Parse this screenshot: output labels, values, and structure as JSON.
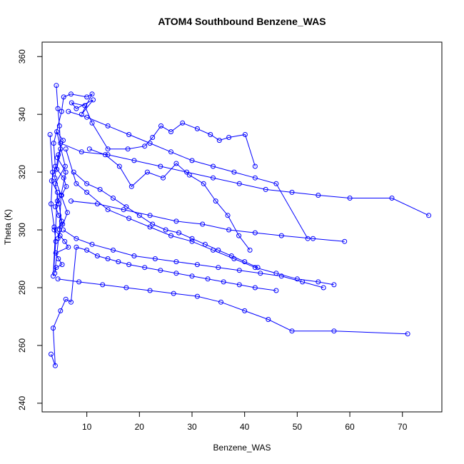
{
  "chart_data": {
    "type": "line",
    "title": "ATOM4 Southbound Benzene_WAS",
    "xlabel": "Benzene_WAS",
    "ylabel": "Theta (K)",
    "xlim": [
      1.5,
      77.5
    ],
    "ylim": [
      237,
      365
    ],
    "x_ticks": [
      10,
      20,
      30,
      40,
      50,
      60,
      70
    ],
    "y_ticks": [
      240,
      260,
      280,
      300,
      320,
      340,
      360
    ],
    "marker": "open-circle",
    "series_color": "#0000ff",
    "series": [
      {
        "x": [
          4.2,
          4.5,
          4.8,
          5.0,
          4.3,
          5.6,
          6.1,
          5.2,
          4.4,
          4.0,
          4.7,
          5.4,
          3.8,
          4.9,
          5.8,
          6.5,
          4.1,
          4.6,
          5.3,
          4.2,
          3.9,
          4.8,
          5.1,
          6.0,
          4.4,
          5.5,
          4.3,
          5.9,
          4.0,
          4.7,
          5.2,
          4.5,
          6.3,
          3.9,
          4.6
        ],
        "y": [
          350,
          342,
          336,
          328,
          321,
          318,
          315,
          312,
          310,
          308,
          305,
          302,
          300,
          298,
          296,
          294,
          292,
          290,
          288,
          287,
          285,
          300,
          312,
          320,
          325,
          331,
          334,
          322,
          316,
          309,
          303,
          297,
          306,
          318,
          326
        ]
      },
      {
        "x": [
          3.0,
          3.5,
          3.2,
          3.8,
          4.1,
          3.6,
          4.4,
          3.3,
          4.0,
          3.7,
          5.2,
          5.6,
          7.0,
          10.0,
          11.0,
          9.0,
          11.2,
          8.0,
          7.1,
          9.6,
          11.0,
          14.0,
          17.8,
          21.0,
          22.5,
          24.1,
          26.0,
          28.2,
          31.0,
          33.5,
          35.2,
          37.0,
          40.1,
          42.0
        ],
        "y": [
          333,
          320,
          309,
          301,
          296,
          284,
          313,
          317,
          322,
          330,
          341,
          346,
          347,
          346,
          347,
          340,
          345,
          342,
          344,
          343,
          337,
          328,
          328,
          329,
          332,
          336,
          334,
          337,
          335,
          333,
          331,
          332,
          333,
          322
        ]
      },
      {
        "x": [
          3.2,
          4.0,
          3.6,
          5.0,
          6.0,
          7.0,
          8.0,
          10.0,
          12.0,
          14.0,
          16.0,
          18.0,
          21.0,
          24.0,
          27.0,
          30.0,
          33.0,
          36.0,
          39.0,
          42.0,
          46.0
        ],
        "y": [
          257,
          253,
          266,
          272,
          276,
          275,
          294,
          293,
          291,
          290,
          289,
          288,
          287,
          286,
          285,
          284,
          283,
          282,
          281,
          280,
          279
        ]
      },
      {
        "x": [
          6.0,
          8.0,
          10.0,
          14.0,
          18.0,
          22.0,
          26.0,
          30.0,
          34.0,
          38.0,
          42.0,
          46.0,
          50.0,
          54.0,
          57.0
        ],
        "y": [
          328,
          316,
          313,
          307,
          304,
          301,
          298,
          296,
          293,
          290,
          287,
          285,
          283,
          282,
          281
        ]
      },
      {
        "x": [
          5.5,
          8.0,
          11.0,
          15.0,
          19.0,
          23.0,
          27.0,
          31.0,
          35.0,
          39.0,
          43.0,
          47.0,
          51.0,
          55.0
        ],
        "y": [
          300,
          297,
          295,
          293,
          291,
          290,
          289,
          288,
          287,
          286,
          285,
          284,
          282,
          280
        ]
      },
      {
        "x": [
          6.5,
          10.0,
          14.0,
          18.0,
          22.0,
          26.0,
          30.0,
          34.0,
          38.0,
          42.0,
          46.0,
          52.0
        ],
        "y": [
          341,
          339,
          336,
          333,
          330,
          327,
          324,
          322,
          320,
          318,
          316,
          297
        ]
      },
      {
        "x": [
          7.0,
          12.0,
          17.0,
          22.0,
          27.0,
          32.0,
          37.0,
          42.0,
          47.0,
          53.0,
          59.0
        ],
        "y": [
          310,
          309,
          307,
          305,
          303,
          302,
          300,
          299,
          298,
          297,
          296
        ]
      },
      {
        "x": [
          5.0,
          9.0,
          14.0,
          19.0,
          24.0,
          29.0,
          34.0,
          39.0,
          44.0,
          49.0,
          54.0,
          60.0,
          68.0,
          75.0
        ],
        "y": [
          330,
          327,
          326,
          324,
          322,
          320,
          318,
          316,
          314,
          313,
          312,
          311,
          311,
          305
        ]
      },
      {
        "x": [
          4.5,
          8.5,
          13.0,
          17.5,
          22.0,
          26.5,
          31.0,
          35.5,
          40.0,
          44.5,
          49.0,
          57.0,
          71.0
        ],
        "y": [
          283,
          282,
          281,
          280,
          279,
          278,
          277,
          275,
          272,
          269,
          265,
          265,
          264
        ]
      },
      {
        "x": [
          10.5,
          13.5,
          16.2,
          18.5,
          21.5,
          24.5,
          27.0,
          29.5,
          32.2,
          34.5,
          36.8,
          38.9,
          41.0
        ],
        "y": [
          328,
          326,
          322,
          315,
          320,
          318,
          323,
          319,
          316,
          310,
          305,
          298,
          293
        ]
      },
      {
        "x": [
          7.5,
          10.0,
          12.5,
          15.0,
          17.5,
          20.0,
          22.5,
          25.0,
          27.5,
          30.0,
          32.5,
          35.0,
          37.5,
          40.0,
          42.5
        ],
        "y": [
          320,
          316,
          314,
          311,
          308,
          305,
          302,
          300,
          299,
          297,
          295,
          293,
          291,
          289,
          287
        ]
      }
    ]
  }
}
